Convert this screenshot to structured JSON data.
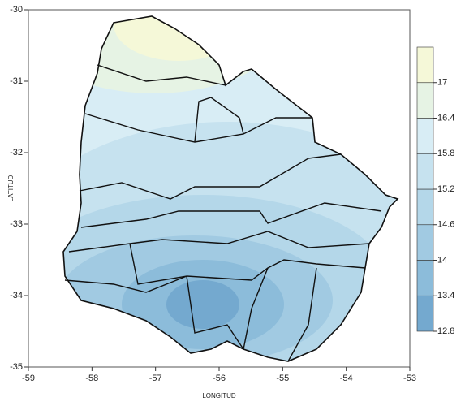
{
  "chart_data": {
    "type": "contour-map",
    "x_label": "LONGITUD",
    "y_label": "LATITUD",
    "xlim": [
      -59,
      -53
    ],
    "xticks": [
      -59,
      -58,
      -57,
      -56,
      -55,
      -54,
      -53
    ],
    "ylim": [
      -35,
      -30
    ],
    "yticks": [
      -30,
      -31,
      -32,
      -33,
      -34,
      -35
    ],
    "colorbar": {
      "lim": [
        12.8,
        17.6
      ],
      "ticks": [
        12.8,
        13.4,
        14,
        14.6,
        15.2,
        15.8,
        16.4,
        17
      ],
      "colors": [
        "#74a9cf",
        "#8cbcda",
        "#a1cae2",
        "#b4d7e9",
        "#c6e2ef",
        "#d8edf5",
        "#e6f3e4",
        "#f5f8d8"
      ]
    }
  }
}
